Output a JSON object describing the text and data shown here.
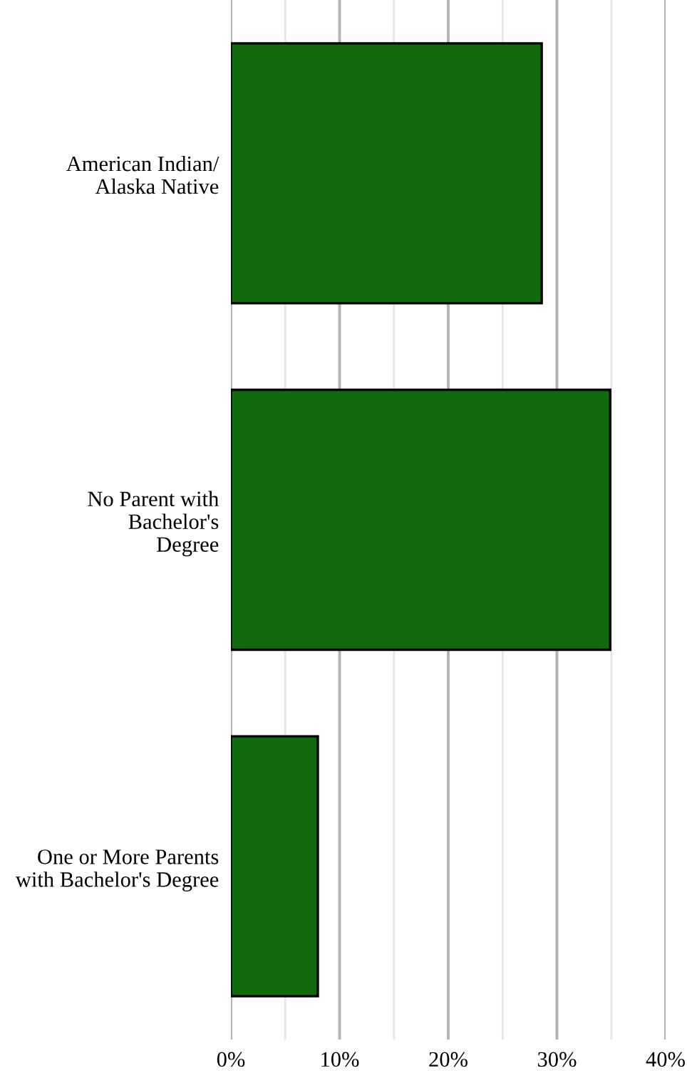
{
  "chart_data": {
    "type": "bar",
    "orientation": "horizontal",
    "categories": [
      "American Indian/\nAlaska Native",
      "No Parent with\nBachelor's\nDegree",
      "One or More Parents\nwith Bachelor's Degree"
    ],
    "values": [
      28.6,
      34.9,
      8.0
    ],
    "color": "#116b0c",
    "xlim": [
      0,
      40
    ],
    "xticks": [
      {
        "value": 0,
        "label": "0%"
      },
      {
        "value": 5,
        "label": null
      },
      {
        "value": 10,
        "label": "10%"
      },
      {
        "value": 15,
        "label": null
      },
      {
        "value": 20,
        "label": "20%"
      },
      {
        "value": 25,
        "label": null
      },
      {
        "value": 30,
        "label": "30%"
      },
      {
        "value": 35,
        "label": null
      },
      {
        "value": 40,
        "label": "40%"
      }
    ],
    "grid": "x"
  }
}
